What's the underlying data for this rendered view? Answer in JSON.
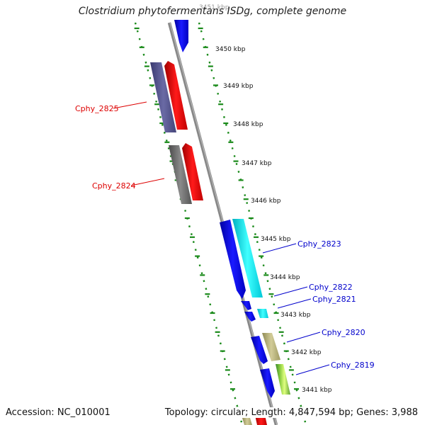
{
  "title": "Clostridium phytofermentans ISDg, complete genome",
  "accession_text": "Accession: NC_010001",
  "summary_text": "Topology: circular; Length: 4,847,594 bp; Genes: 3,988",
  "ruler": [
    {
      "label": "3451 kbp",
      "faint": true
    },
    {
      "label": "3450 kbp"
    },
    {
      "label": "3449 kbp"
    },
    {
      "label": "3448 kbp"
    },
    {
      "label": "3447 kbp"
    },
    {
      "label": "3446 kbp"
    },
    {
      "label": "3445 kbp"
    },
    {
      "label": "3444 kbp"
    },
    {
      "label": "3443 kbp"
    },
    {
      "label": "3442 kbp"
    },
    {
      "label": "3441 kbp"
    }
  ],
  "gene_labels": [
    {
      "name": "Cphy_2825",
      "color": "#dd0000"
    },
    {
      "name": "Cphy_2824",
      "color": "#dd0000"
    },
    {
      "name": "Cphy_2823",
      "color": "#0000cc"
    },
    {
      "name": "Cphy_2822",
      "color": "#0000cc"
    },
    {
      "name": "Cphy_2821",
      "color": "#0000cc"
    },
    {
      "name": "Cphy_2820",
      "color": "#0000cc"
    },
    {
      "name": "Cphy_2819",
      "color": "#0000cc"
    }
  ],
  "colors": {
    "backbone": "#888888",
    "tick": "#1a8a1a",
    "blue": "#0000ee",
    "red": "#ee0000",
    "slate": "#55558a",
    "gray": "#6a6a6a",
    "cyan": "#00e5ee",
    "khaki": "#b5b078"
  }
}
